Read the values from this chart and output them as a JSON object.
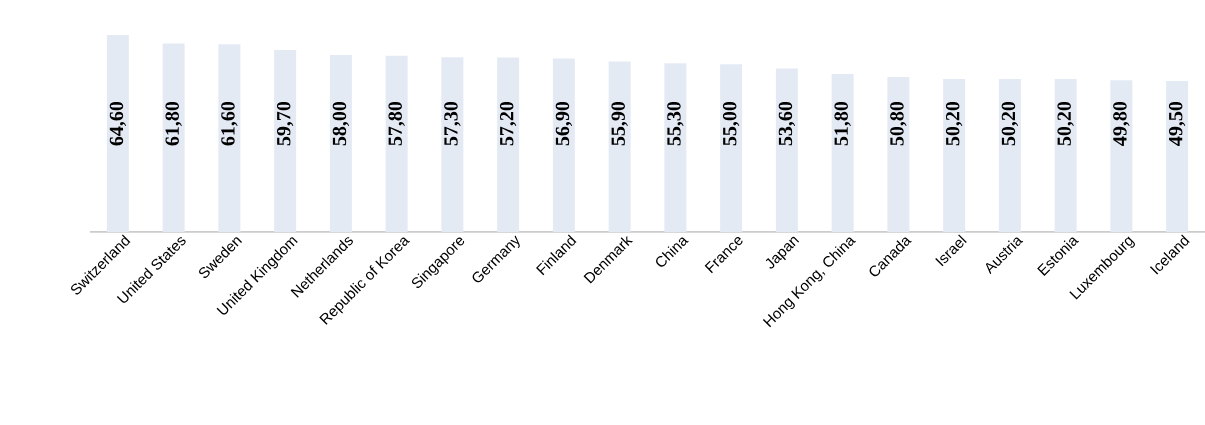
{
  "chart_data": {
    "type": "bar",
    "categories": [
      "Switzerland",
      "United States",
      "Sweden",
      "United Kingdom",
      "Netherlands",
      "Republic of Korea",
      "Singapore",
      "Germany",
      "Finland",
      "Denmark",
      "China",
      "France",
      "Japan",
      "Hong Kong, China",
      "Canada",
      "Israel",
      "Austria",
      "Estonia",
      "Luxembourg",
      "Iceland"
    ],
    "values": [
      64.6,
      61.8,
      61.6,
      59.7,
      58.0,
      57.8,
      57.3,
      57.2,
      56.9,
      55.9,
      55.3,
      55.0,
      53.6,
      51.8,
      50.8,
      50.2,
      50.2,
      50.2,
      49.8,
      49.5
    ],
    "value_labels": [
      "64,60",
      "61,80",
      "61,60",
      "59,70",
      "58,00",
      "57,80",
      "57,30",
      "57,20",
      "56,90",
      "55,90",
      "55,30",
      "55,00",
      "53,60",
      "51,80",
      "50,80",
      "50,20",
      "50,20",
      "50,20",
      "49,80",
      "49,50"
    ],
    "color": "#e4eaf4"
  }
}
